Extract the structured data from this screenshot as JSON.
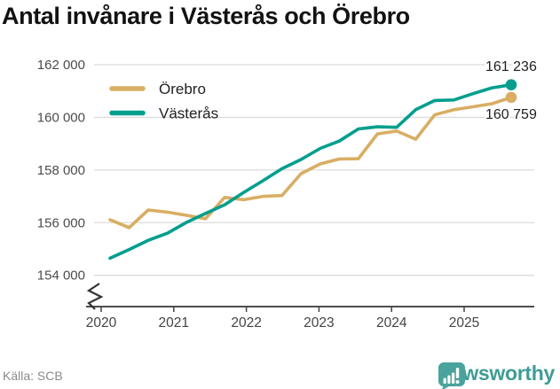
{
  "title": "Antal invånare i Västerås och Örebro",
  "source_label": "Källa: SCB",
  "logo": {
    "text": "Newsworthy",
    "icon": "newsworthy-bubble-chart-icon",
    "color": "#3E9C95"
  },
  "legend": {
    "items": [
      {
        "label": "Örebro",
        "color": "#D9AE63"
      },
      {
        "label": "Västerås",
        "color": "#009E8E"
      }
    ]
  },
  "chart_data": {
    "type": "line",
    "title": "Antal invånare i Västerås och Örebro",
    "source": "SCB",
    "x_unit": "quarter",
    "grid": "horizontal",
    "legend_position": "top-left",
    "axis_break": true,
    "ylim": [
      153500,
      162400
    ],
    "yticks": [
      "154 000",
      "156 000",
      "158 000",
      "160 000",
      "162 000"
    ],
    "xticks": [
      "2020",
      "2021",
      "2022",
      "2023",
      "2024",
      "2025"
    ],
    "categories": [
      "2020-Q1",
      "2020-Q2",
      "2020-Q3",
      "2020-Q4",
      "2021-Q1",
      "2021-Q2",
      "2021-Q3",
      "2021-Q4",
      "2022-Q1",
      "2022-Q2",
      "2022-Q3",
      "2022-Q4",
      "2023-Q1",
      "2023-Q2",
      "2023-Q3",
      "2023-Q4",
      "2024-Q1",
      "2024-Q2",
      "2024-Q3",
      "2024-Q4",
      "2025-Q1",
      "2025-Q2"
    ],
    "series": [
      {
        "name": "Örebro",
        "color": "#D9AE63",
        "end_label": "160 759",
        "end_label_position": "below",
        "values": [
          156110,
          155810,
          156480,
          156400,
          156280,
          156150,
          156960,
          156870,
          157000,
          157030,
          157860,
          158230,
          158420,
          158430,
          159370,
          159480,
          159170,
          160100,
          160290,
          160400,
          160520,
          160759
        ]
      },
      {
        "name": "Västerås",
        "color": "#009E8E",
        "end_label": "161 236",
        "end_label_position": "above",
        "values": [
          154650,
          154980,
          155330,
          155600,
          156010,
          156350,
          156680,
          157150,
          157590,
          158050,
          158400,
          158820,
          159100,
          159560,
          159640,
          159620,
          160290,
          160640,
          160660,
          160900,
          161120,
          161236
        ]
      }
    ]
  }
}
